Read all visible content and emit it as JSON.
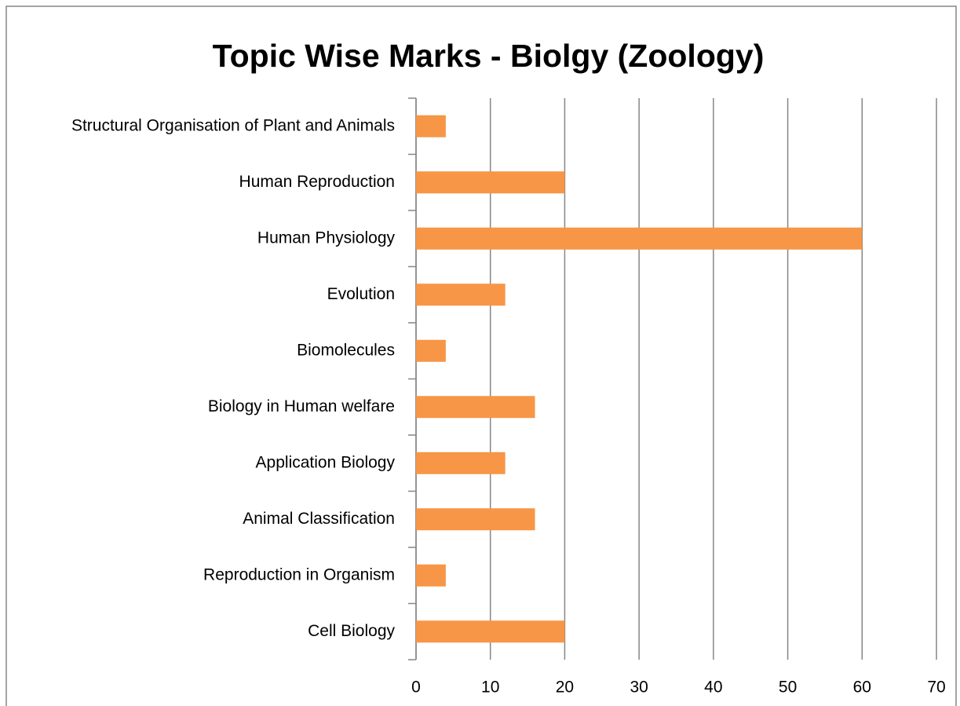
{
  "chart_data": {
    "type": "bar",
    "orientation": "horizontal",
    "title": "Topic Wise Marks - Biolgy (Zoology)",
    "categories": [
      "Structural Organisation of Plant and Animals",
      "Human Reproduction",
      "Human Physiology",
      "Evolution",
      "Biomolecules",
      "Biology in Human welfare",
      "Application Biology",
      "Animal Classification",
      "Reproduction in Organism",
      "Cell Biology"
    ],
    "values": [
      4,
      20,
      60,
      12,
      4,
      16,
      12,
      16,
      4,
      20
    ],
    "color": "#f79646",
    "xlim": [
      0,
      70
    ],
    "xticks": [
      0,
      10,
      20,
      30,
      40,
      50,
      60,
      70
    ],
    "grid": true
  }
}
